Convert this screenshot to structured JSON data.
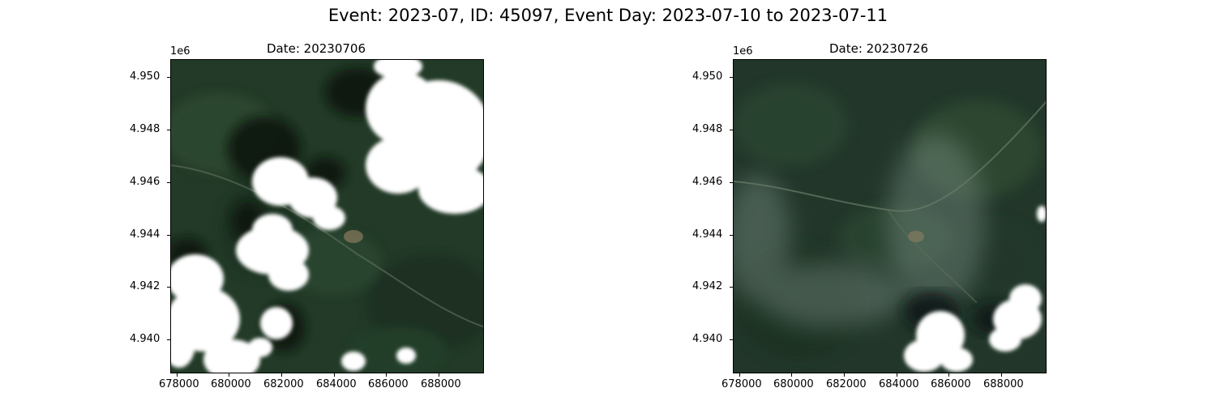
{
  "figure": {
    "suptitle": "Event: 2023-07, ID: 45097, Event Day: 2023-07-10 to 2023-07-11"
  },
  "panels": [
    {
      "title": "Date: 20230706",
      "offset_label": "1e6",
      "yticks": [
        "4.950",
        "4.948",
        "4.946",
        "4.944",
        "4.942",
        "4.940"
      ],
      "xticks": [
        "678000",
        "680000",
        "682000",
        "684000",
        "686000",
        "688000"
      ],
      "description": "cloudy"
    },
    {
      "title": "Date: 20230726",
      "offset_label": "1e6",
      "yticks": [
        "4.950",
        "4.948",
        "4.946",
        "4.944",
        "4.942",
        "4.940"
      ],
      "xticks": [
        "678000",
        "680000",
        "682000",
        "684000",
        "686000",
        "688000"
      ],
      "description": "mostly clear"
    }
  ],
  "colors": {
    "vegetation_dark": "#1e3324",
    "vegetation_mid": "#2f4a33",
    "cloud": "#ffffff",
    "shadow": "#0b140f"
  }
}
